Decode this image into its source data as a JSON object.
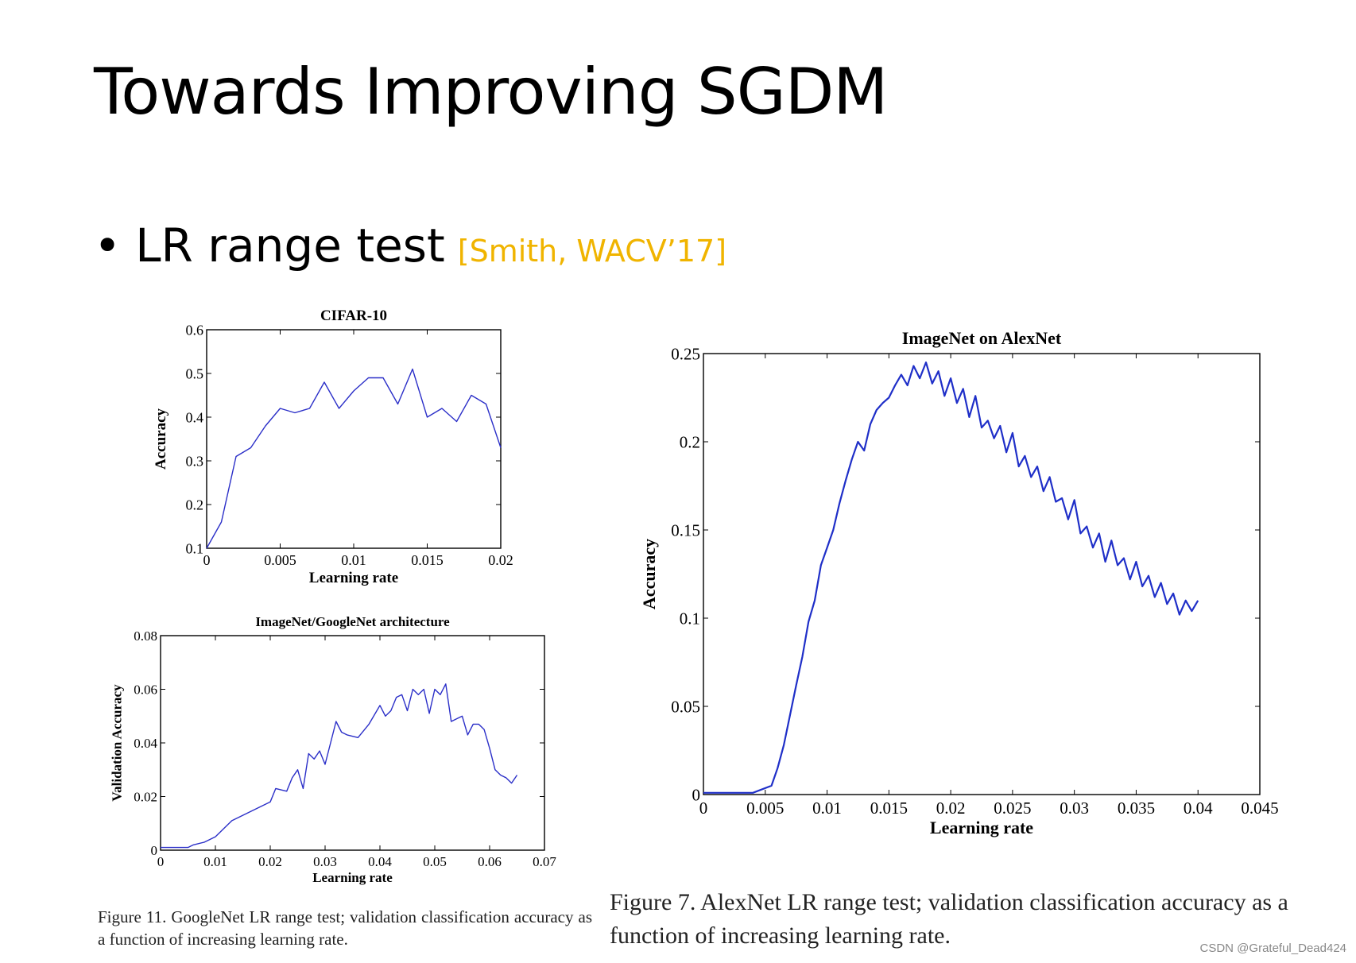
{
  "slide": {
    "title": "Towards Improving SGDM",
    "bullet": {
      "text": "LR range test",
      "citation": "[Smith, WACV’17]"
    },
    "caption_left": "Figure 11. GoogleNet LR range test; validation classification accuracy as a function of increasing learning rate.",
    "caption_right": "Figure 7. AlexNet LR range test; validation classification accuracy as a function of increasing learning rate.",
    "watermark": "CSDN @Grateful_Dead424"
  },
  "chart_data": [
    {
      "id": "cifar",
      "type": "line",
      "title": "CIFAR-10",
      "xlabel": "Learning rate",
      "ylabel": "Accuracy",
      "xlim": [
        0,
        0.02
      ],
      "ylim": [
        0.1,
        0.6
      ],
      "xticks": [
        0,
        0.005,
        0.01,
        0.015,
        0.02
      ],
      "xtick_labels": [
        "0",
        "0.005",
        "0.01",
        "0.015",
        "0.02"
      ],
      "yticks": [
        0.1,
        0.2,
        0.3,
        0.4,
        0.5,
        0.6
      ],
      "ytick_labels": [
        "0.1",
        "0.2",
        "0.3",
        "0.4",
        "0.5",
        "0.6"
      ],
      "color": "#2b2fc8",
      "series": [
        {
          "name": "Accuracy",
          "x": [
            0,
            0.001,
            0.002,
            0.003,
            0.004,
            0.005,
            0.006,
            0.007,
            0.008,
            0.009,
            0.01,
            0.011,
            0.012,
            0.013,
            0.014,
            0.015,
            0.016,
            0.017,
            0.018,
            0.019,
            0.02
          ],
          "y": [
            0.1,
            0.16,
            0.31,
            0.33,
            0.38,
            0.42,
            0.41,
            0.42,
            0.48,
            0.42,
            0.46,
            0.49,
            0.49,
            0.43,
            0.51,
            0.4,
            0.42,
            0.39,
            0.45,
            0.43,
            0.33
          ]
        }
      ]
    },
    {
      "id": "googlenet",
      "type": "line",
      "title": "ImageNet/GoogleNet architecture",
      "xlabel": "Learning rate",
      "ylabel": "Validation Accuracy",
      "xlim": [
        0,
        0.07
      ],
      "ylim": [
        0,
        0.08
      ],
      "xticks": [
        0,
        0.01,
        0.02,
        0.03,
        0.04,
        0.05,
        0.06,
        0.07
      ],
      "xtick_labels": [
        "0",
        "0.01",
        "0.02",
        "0.03",
        "0.04",
        "0.05",
        "0.06",
        "0.07"
      ],
      "yticks": [
        0,
        0.02,
        0.04,
        0.06,
        0.08
      ],
      "ytick_labels": [
        "0",
        "0.02",
        "0.04",
        "0.06",
        "0.08"
      ],
      "color": "#2b2fc8",
      "series": [
        {
          "name": "Validation Accuracy",
          "x": [
            0,
            0.002,
            0.003,
            0.005,
            0.006,
            0.008,
            0.01,
            0.012,
            0.013,
            0.015,
            0.017,
            0.018,
            0.02,
            0.021,
            0.023,
            0.024,
            0.025,
            0.026,
            0.027,
            0.028,
            0.029,
            0.03,
            0.031,
            0.032,
            0.033,
            0.034,
            0.036,
            0.038,
            0.04,
            0.041,
            0.042,
            0.043,
            0.044,
            0.045,
            0.046,
            0.047,
            0.048,
            0.049,
            0.05,
            0.051,
            0.052,
            0.053,
            0.054,
            0.055,
            0.056,
            0.057,
            0.058,
            0.059,
            0.06,
            0.061,
            0.062,
            0.063,
            0.064,
            0.065
          ],
          "y": [
            0.001,
            0.001,
            0.001,
            0.001,
            0.002,
            0.003,
            0.005,
            0.009,
            0.011,
            0.013,
            0.015,
            0.016,
            0.018,
            0.023,
            0.022,
            0.027,
            0.03,
            0.023,
            0.036,
            0.034,
            0.037,
            0.032,
            0.04,
            0.048,
            0.044,
            0.043,
            0.042,
            0.047,
            0.054,
            0.05,
            0.052,
            0.057,
            0.058,
            0.052,
            0.06,
            0.058,
            0.06,
            0.051,
            0.06,
            0.058,
            0.062,
            0.048,
            0.049,
            0.05,
            0.043,
            0.047,
            0.047,
            0.045,
            0.038,
            0.03,
            0.028,
            0.027,
            0.025,
            0.028
          ]
        }
      ]
    },
    {
      "id": "alexnet",
      "type": "line",
      "title": "ImageNet on AlexNet",
      "xlabel": "Learning rate",
      "ylabel": "Accuracy",
      "xlim": [
        0,
        0.045
      ],
      "ylim": [
        0,
        0.25
      ],
      "xticks": [
        0,
        0.005,
        0.01,
        0.015,
        0.02,
        0.025,
        0.03,
        0.035,
        0.04,
        0.045
      ],
      "xtick_labels": [
        "0",
        "0.005",
        "0.01",
        "0.015",
        "0.02",
        "0.025",
        "0.03",
        "0.035",
        "0.04",
        "0.045"
      ],
      "yticks": [
        0,
        0.05,
        0.1,
        0.15,
        0.2,
        0.25
      ],
      "ytick_labels": [
        "0",
        "0.05",
        "0.1",
        "0.15",
        "0.2",
        "0.25"
      ],
      "color": "#1f2fc8",
      "series": [
        {
          "name": "Accuracy",
          "x": [
            0,
            0.004,
            0.0055,
            0.006,
            0.0065,
            0.007,
            0.0075,
            0.008,
            0.0085,
            0.009,
            0.0095,
            0.01,
            0.0105,
            0.011,
            0.0115,
            0.012,
            0.0125,
            0.013,
            0.0135,
            0.014,
            0.0145,
            0.015,
            0.0155,
            0.016,
            0.0165,
            0.017,
            0.0175,
            0.018,
            0.0185,
            0.019,
            0.0195,
            0.02,
            0.0205,
            0.021,
            0.0215,
            0.022,
            0.0225,
            0.023,
            0.0235,
            0.024,
            0.0245,
            0.025,
            0.0255,
            0.026,
            0.0265,
            0.027,
            0.0275,
            0.028,
            0.0285,
            0.029,
            0.0295,
            0.03,
            0.0305,
            0.031,
            0.0315,
            0.032,
            0.0325,
            0.033,
            0.0335,
            0.034,
            0.0345,
            0.035,
            0.0355,
            0.036,
            0.0365,
            0.037,
            0.0375,
            0.038,
            0.0385,
            0.039,
            0.0395,
            0.04
          ],
          "y": [
            0.001,
            0.001,
            0.005,
            0.015,
            0.028,
            0.045,
            0.062,
            0.078,
            0.098,
            0.11,
            0.13,
            0.14,
            0.15,
            0.165,
            0.178,
            0.19,
            0.2,
            0.195,
            0.21,
            0.218,
            0.222,
            0.225,
            0.232,
            0.238,
            0.232,
            0.243,
            0.236,
            0.245,
            0.233,
            0.24,
            0.226,
            0.236,
            0.222,
            0.23,
            0.214,
            0.226,
            0.208,
            0.212,
            0.202,
            0.209,
            0.194,
            0.205,
            0.186,
            0.192,
            0.18,
            0.186,
            0.172,
            0.18,
            0.166,
            0.168,
            0.156,
            0.167,
            0.148,
            0.152,
            0.14,
            0.148,
            0.132,
            0.144,
            0.13,
            0.134,
            0.122,
            0.132,
            0.118,
            0.124,
            0.112,
            0.12,
            0.108,
            0.114,
            0.102,
            0.11,
            0.104,
            0.11
          ]
        }
      ]
    }
  ]
}
